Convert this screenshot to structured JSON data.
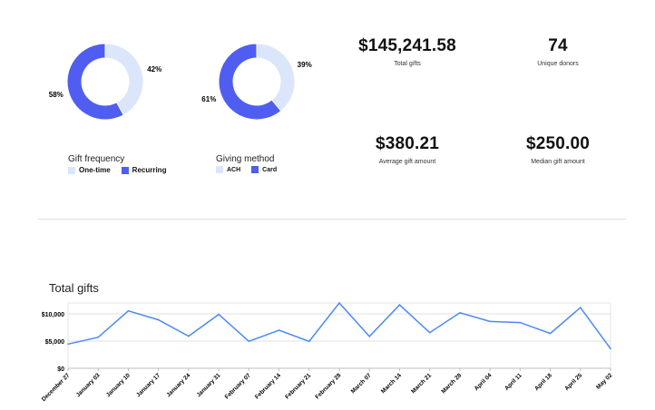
{
  "colors": {
    "primary": "#4f5ef0",
    "light": "#dce6fa",
    "line": "#4a8af4"
  },
  "chart_data": [
    {
      "type": "pie",
      "variant": "donut",
      "title": "Gift frequency",
      "slices": [
        {
          "name": "One-time",
          "value": 42,
          "label": "42%"
        },
        {
          "name": "Recurring",
          "value": 58,
          "label": "58%"
        }
      ]
    },
    {
      "type": "pie",
      "variant": "donut",
      "title": "Giving method",
      "slices": [
        {
          "name": "ACH",
          "value": 39,
          "label": "39%"
        },
        {
          "name": "Card",
          "value": 61,
          "label": "61%"
        }
      ]
    },
    {
      "type": "line",
      "title": "Total gifts",
      "grid": true,
      "ylim": [
        0,
        12000
      ],
      "yticks": [
        {
          "value": 0,
          "label": "$0"
        },
        {
          "value": 5000,
          "label": "$5,000"
        },
        {
          "value": 10000,
          "label": "$10,000"
        }
      ],
      "categories": [
        "December 27",
        "January 03",
        "January 10",
        "January 17",
        "January 24",
        "January 31",
        "February 07",
        "February 14",
        "February 21",
        "February 28",
        "March 07",
        "March 14",
        "March 21",
        "March 28",
        "April 04",
        "April 11",
        "April 18",
        "April 25",
        "May 02"
      ],
      "values": [
        4450,
        5700,
        10550,
        8900,
        5900,
        9900,
        4950,
        7000,
        4950,
        12000,
        5850,
        11650,
        6550,
        10200,
        8600,
        8400,
        6400,
        11150,
        3600
      ]
    }
  ],
  "stats": [
    {
      "value": "$145,241.58",
      "label": "Total gifts"
    },
    {
      "value": "74",
      "label": "Unique donors"
    },
    {
      "value": "$380.21",
      "label": "Average gift amount"
    },
    {
      "value": "$250.00",
      "label": "Median gift amount"
    }
  ]
}
